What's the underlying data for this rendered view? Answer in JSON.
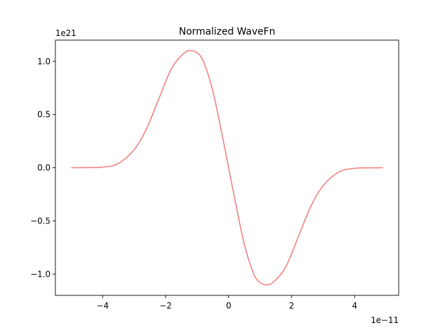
{
  "chart_data": {
    "type": "line",
    "title": "Normalized WaveFn",
    "xlabel": "",
    "ylabel": "",
    "x_offset_label": "1e−11",
    "y_offset_label": "1e21",
    "xlim": [
      -5.5,
      5.4
    ],
    "ylim": [
      -1.2,
      1.2
    ],
    "x_ticks": [
      {
        "value": -4,
        "label": "−4"
      },
      {
        "value": -2,
        "label": "−2"
      },
      {
        "value": 0,
        "label": "0"
      },
      {
        "value": 2,
        "label": "2"
      },
      {
        "value": 4,
        "label": "4"
      }
    ],
    "y_ticks": [
      {
        "value": -1.0,
        "label": "−1.0"
      },
      {
        "value": -0.5,
        "label": "−0.5"
      },
      {
        "value": 0.0,
        "label": "0.0"
      },
      {
        "value": 0.5,
        "label": "0.5"
      },
      {
        "value": 1.0,
        "label": "1.0"
      }
    ],
    "grid": false,
    "legend": "none",
    "series": [
      {
        "color": "#f08080",
        "x": [
          -5.0,
          -4.5,
          -4.0,
          -3.5,
          -3.0,
          -2.6,
          -2.2,
          -1.8,
          -1.4,
          -1.2,
          -1.0,
          -0.8,
          -0.5,
          -0.2,
          0.0,
          0.2,
          0.5,
          0.8,
          1.0,
          1.2,
          1.4,
          1.8,
          2.2,
          2.6,
          3.0,
          3.5,
          4.0,
          4.5,
          4.9
        ],
        "y": [
          0.0,
          0.001,
          0.005,
          0.04,
          0.17,
          0.37,
          0.66,
          0.94,
          1.08,
          1.1,
          1.08,
          1.0,
          0.72,
          0.3,
          0.0,
          -0.3,
          -0.72,
          -1.0,
          -1.08,
          -1.1,
          -1.08,
          -0.94,
          -0.66,
          -0.37,
          -0.17,
          -0.04,
          -0.005,
          -0.001,
          0.0
        ]
      }
    ]
  }
}
